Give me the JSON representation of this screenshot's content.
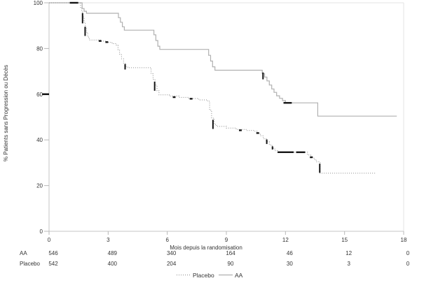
{
  "chart_data": {
    "type": "line",
    "subtype": "kaplan-meier-step-survival",
    "title": "",
    "xlabel": "Mois depuis la randomisation",
    "ylabel": "% Patients sans Progression ou Décès",
    "xlim": [
      0,
      18
    ],
    "ylim": [
      0,
      100
    ],
    "x_ticks": [
      0,
      3,
      6,
      9,
      12,
      15,
      18
    ],
    "y_ticks": [
      0,
      20,
      40,
      60,
      80,
      100
    ],
    "grid": false,
    "legend_position": "bottom-center",
    "series": [
      {
        "name": "AA",
        "style": "solid",
        "color": "#b0b0b0",
        "points": [
          [
            0,
            100
          ],
          [
            1.6,
            100
          ],
          [
            1.68,
            97.5
          ],
          [
            1.78,
            96.3
          ],
          [
            1.9,
            95.4
          ],
          [
            3.45,
            95.4
          ],
          [
            3.52,
            93.5
          ],
          [
            3.62,
            91.5
          ],
          [
            3.72,
            89.5
          ],
          [
            3.82,
            88
          ],
          [
            5.25,
            88
          ],
          [
            5.32,
            86
          ],
          [
            5.42,
            83.5
          ],
          [
            5.52,
            81
          ],
          [
            5.62,
            79.6
          ],
          [
            8.0,
            79.6
          ],
          [
            8.1,
            77
          ],
          [
            8.2,
            74.5
          ],
          [
            8.3,
            72
          ],
          [
            8.42,
            70.5
          ],
          [
            10.7,
            70.5
          ],
          [
            10.82,
            69
          ],
          [
            10.94,
            67.5
          ],
          [
            11.06,
            65.8
          ],
          [
            11.18,
            64
          ],
          [
            11.3,
            62.3
          ],
          [
            11.42,
            60.8
          ],
          [
            11.55,
            59.3
          ],
          [
            11.7,
            58.2
          ],
          [
            11.85,
            57.2
          ],
          [
            12.0,
            56.2
          ],
          [
            13.58,
            56.2
          ],
          [
            13.64,
            50.4
          ],
          [
            17.65,
            50.4
          ]
        ],
        "censor_h": [
          [
            1.05,
            1.48,
            100
          ],
          [
            11.9,
            12.32,
            56.2
          ]
        ],
        "censor_v": [
          [
            10.86,
            66.5,
            69.5
          ]
        ]
      },
      {
        "name": "Placebo",
        "style": "dotted",
        "color": "#8a8a8a",
        "points": [
          [
            0,
            100
          ],
          [
            1.55,
            100
          ],
          [
            1.6,
            98
          ],
          [
            1.66,
            96
          ],
          [
            1.72,
            93.8
          ],
          [
            1.78,
            91.5
          ],
          [
            1.84,
            89.3
          ],
          [
            1.9,
            87
          ],
          [
            1.96,
            85
          ],
          [
            2.04,
            83.7
          ],
          [
            2.6,
            83.2
          ],
          [
            2.9,
            82.7
          ],
          [
            3.2,
            82.1
          ],
          [
            3.42,
            81.4
          ],
          [
            3.5,
            79.5
          ],
          [
            3.58,
            77.5
          ],
          [
            3.68,
            75.5
          ],
          [
            3.78,
            73.5
          ],
          [
            3.9,
            72
          ],
          [
            4.0,
            71.6
          ],
          [
            5.1,
            71.6
          ],
          [
            5.18,
            69
          ],
          [
            5.28,
            66.5
          ],
          [
            5.38,
            64
          ],
          [
            5.48,
            61.5
          ],
          [
            5.58,
            59.7
          ],
          [
            6.1,
            59.2
          ],
          [
            6.6,
            58.6
          ],
          [
            7.1,
            58.1
          ],
          [
            7.6,
            57.5
          ],
          [
            8.05,
            56.9
          ],
          [
            8.15,
            53
          ],
          [
            8.25,
            49.5
          ],
          [
            8.38,
            46.8
          ],
          [
            8.5,
            45.9
          ],
          [
            9.0,
            45.2
          ],
          [
            9.5,
            44.6
          ],
          [
            10.0,
            44.1
          ],
          [
            10.45,
            43.8
          ],
          [
            10.58,
            42.9
          ],
          [
            10.72,
            41.8
          ],
          [
            10.88,
            40.5
          ],
          [
            11.02,
            39.2
          ],
          [
            11.18,
            37.8
          ],
          [
            11.32,
            36.4
          ],
          [
            11.46,
            35.3
          ],
          [
            11.6,
            34.6
          ],
          [
            13.0,
            34.6
          ],
          [
            13.12,
            33.4
          ],
          [
            13.28,
            32.4
          ],
          [
            13.45,
            31.4
          ],
          [
            13.56,
            30.4
          ],
          [
            13.7,
            30.4
          ],
          [
            13.76,
            25.4
          ],
          [
            16.55,
            25.4
          ]
        ],
        "censor_h": [
          [
            2.52,
            2.66,
            83.3
          ],
          [
            2.86,
            3.0,
            82.8
          ],
          [
            6.28,
            6.42,
            58.7
          ],
          [
            7.14,
            7.28,
            58.0
          ],
          [
            9.64,
            9.78,
            44.2
          ],
          [
            10.52,
            10.66,
            43.0
          ],
          [
            11.6,
            12.42,
            34.6
          ],
          [
            12.54,
            13.0,
            34.6
          ],
          [
            13.24,
            13.38,
            32.4
          ]
        ],
        "censor_v": [
          [
            1.7,
            91,
            95.5
          ],
          [
            1.83,
            85.5,
            89.5
          ],
          [
            3.86,
            70.8,
            73.2
          ],
          [
            5.36,
            61.5,
            65.5
          ],
          [
            8.32,
            44.8,
            48.8
          ],
          [
            11.05,
            38.2,
            40.2
          ],
          [
            11.34,
            35.8,
            37.2
          ],
          [
            13.74,
            25.6,
            29.6
          ]
        ]
      }
    ],
    "risk_table": {
      "rows": [
        {
          "label": "AA",
          "counts": [
            546,
            489,
            340,
            164,
            46,
            12,
            0
          ]
        },
        {
          "label": "Placebo",
          "counts": [
            542,
            400,
            204,
            90,
            30,
            3,
            0
          ]
        }
      ]
    }
  },
  "legend": {
    "items": [
      {
        "label": "Placebo",
        "style": "dotted"
      },
      {
        "label": "AA",
        "style": "solid"
      }
    ]
  },
  "colors": {
    "censor_mark": "#151515",
    "axis": "#c4c4c4",
    "frame_light": "#e3e3e3",
    "tick": "#b8b8b8",
    "tick_60_bold": "#111111",
    "text": "#333333"
  }
}
